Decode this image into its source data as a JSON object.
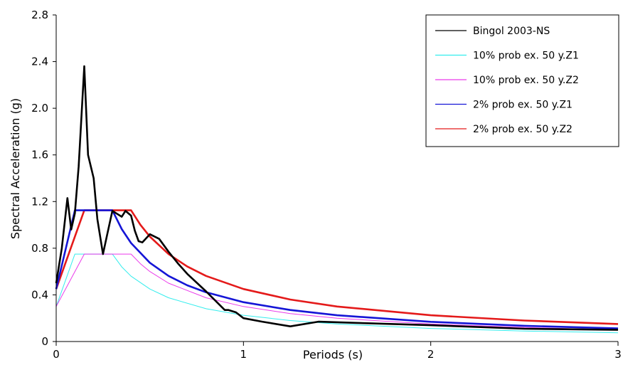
{
  "chart_data": {
    "type": "line",
    "title": "",
    "xlabel": "Periods (s)",
    "ylabel": "Spectral Acceleration (g)",
    "xlim": [
      0,
      3
    ],
    "ylim": [
      0,
      2.8
    ],
    "x_ticks": [
      0,
      1,
      2,
      3
    ],
    "x_tick_labels": [
      "0",
      "1",
      "2",
      "3"
    ],
    "y_ticks": [
      0,
      0.4,
      0.8,
      1.2,
      1.6,
      2.0,
      2.4,
      2.8
    ],
    "y_tick_labels": [
      "0",
      "0.4",
      "0.8",
      "1.2",
      "1.6",
      "2.0",
      "2.4",
      "2.8"
    ],
    "grid": false,
    "legend_position": "top-right",
    "series": [
      {
        "name": "Bingol 2003-NS",
        "color": "#000000",
        "x": [
          0,
          0.03,
          0.06,
          0.08,
          0.1,
          0.12,
          0.15,
          0.17,
          0.2,
          0.22,
          0.25,
          0.27,
          0.3,
          0.32,
          0.35,
          0.37,
          0.4,
          0.42,
          0.44,
          0.46,
          0.5,
          0.55,
          0.6,
          0.65,
          0.7,
          0.8,
          0.9,
          0.92,
          0.96,
          1.0,
          1.1,
          1.25,
          1.4,
          1.6,
          1.8,
          2.0,
          2.5,
          3.0
        ],
        "y": [
          0.5,
          0.8,
          1.23,
          0.96,
          1.1,
          1.5,
          2.36,
          1.6,
          1.4,
          1.05,
          0.75,
          0.9,
          1.12,
          1.1,
          1.07,
          1.12,
          1.08,
          0.95,
          0.86,
          0.85,
          0.92,
          0.88,
          0.77,
          0.67,
          0.58,
          0.43,
          0.27,
          0.27,
          0.25,
          0.2,
          0.17,
          0.13,
          0.17,
          0.16,
          0.15,
          0.14,
          0.11,
          0.1
        ]
      },
      {
        "name": "10% prob ex. 50 y.Z1",
        "color": "#33eded",
        "x": [
          0,
          0.1,
          0.3,
          0.35,
          0.4,
          0.5,
          0.6,
          0.8,
          1.0,
          1.25,
          1.5,
          2.0,
          2.5,
          3.0
        ],
        "y": [
          0.3,
          0.75,
          0.75,
          0.64,
          0.56,
          0.45,
          0.375,
          0.281,
          0.225,
          0.18,
          0.15,
          0.1125,
          0.09,
          0.075
        ]
      },
      {
        "name": "10% prob ex. 50 y.Z2",
        "color": "#ea3aea",
        "x": [
          0,
          0.15,
          0.4,
          0.45,
          0.5,
          0.6,
          0.8,
          1.0,
          1.25,
          1.5,
          2.0,
          2.5,
          3.0
        ],
        "y": [
          0.3,
          0.75,
          0.75,
          0.667,
          0.6,
          0.5,
          0.375,
          0.3,
          0.24,
          0.2,
          0.15,
          0.12,
          0.1
        ]
      },
      {
        "name": "2% prob ex. 50 y.Z1",
        "color": "#1515d6",
        "x": [
          0,
          0.1,
          0.3,
          0.35,
          0.4,
          0.5,
          0.6,
          0.7,
          0.8,
          1.0,
          1.25,
          1.5,
          2.0,
          2.5,
          3.0
        ],
        "y": [
          0.45,
          1.125,
          1.125,
          0.964,
          0.844,
          0.675,
          0.5625,
          0.482,
          0.422,
          0.3375,
          0.27,
          0.225,
          0.169,
          0.135,
          0.1125
        ]
      },
      {
        "name": "2% prob ex. 50 y.Z2",
        "color": "#e41a1a",
        "x": [
          0,
          0.15,
          0.4,
          0.45,
          0.5,
          0.6,
          0.7,
          0.8,
          1.0,
          1.25,
          1.5,
          2.0,
          2.5,
          3.0
        ],
        "y": [
          0.45,
          1.125,
          1.125,
          1.0,
          0.9,
          0.75,
          0.643,
          0.5625,
          0.45,
          0.36,
          0.3,
          0.225,
          0.18,
          0.15
        ]
      }
    ]
  }
}
